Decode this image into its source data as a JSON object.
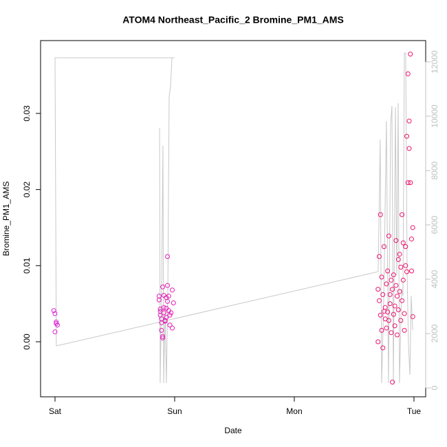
{
  "chart_data": {
    "type": "scatter",
    "title": "ATOM4 Northeast_Pacific_2 Bromine_PM1_AMS",
    "x_label": "Date",
    "y_label": "Bromine_PM1_AMS",
    "xlim": [
      -0.1207,
      3.098
    ],
    "xticks": [
      {
        "value": 0,
        "label": "Sat"
      },
      {
        "value": 1,
        "label": "Sun"
      },
      {
        "value": 2,
        "label": "Mon"
      },
      {
        "value": 3,
        "label": "Tue"
      }
    ],
    "ylim": [
      -0.00723,
      0.03957
    ],
    "yticks": [
      {
        "value": 0,
        "label": "0.00"
      },
      0.01,
      0.02,
      0.03
    ],
    "y2lim": [
      -329,
      12785
    ],
    "y2ticks": [
      0,
      2000,
      4000,
      6000,
      8000,
      10000,
      12000
    ],
    "y2_color": "#c0c0c0",
    "series": [
      {
        "type": "scatter",
        "color_gradient": [
          "#dd22dd",
          "#ee1166"
        ],
        "x": [
          -0.01,
          0.0,
          0.01,
          0.01,
          0.02,
          0.0,
          0.87,
          0.87,
          0.88,
          0.88,
          0.88,
          0.89,
          0.89,
          0.89,
          0.9,
          0.9,
          0.9,
          0.91,
          0.91,
          0.91,
          0.92,
          0.92,
          0.93,
          0.93,
          0.93,
          0.94,
          0.94,
          0.94,
          0.95,
          0.95,
          0.96,
          0.96,
          0.97,
          0.98,
          0.98,
          0.99,
          2.7,
          2.7,
          2.71,
          2.71,
          2.72,
          2.72,
          2.73,
          2.73,
          2.74,
          2.74,
          2.75,
          2.75,
          2.76,
          2.76,
          2.77,
          2.77,
          2.78,
          2.78,
          2.79,
          2.79,
          2.8,
          2.8,
          2.81,
          2.81,
          2.82,
          2.82,
          2.83,
          2.83,
          2.84,
          2.84,
          2.85,
          2.85,
          2.86,
          2.86,
          2.87,
          2.87,
          2.88,
          2.88,
          2.89,
          2.89,
          2.9,
          2.9,
          2.91,
          2.91,
          2.92,
          2.92,
          2.93,
          2.93,
          2.94,
          2.94,
          2.95,
          2.95,
          2.96,
          2.96,
          2.97,
          2.97,
          2.98,
          2.98,
          2.99,
          2.99
        ],
        "values": [
          0.0041,
          0.0037,
          0.0026,
          0.0024,
          0.0022,
          0.0013,
          0.0055,
          0.006,
          0.0043,
          0.004,
          0.0035,
          0.003,
          0.0025,
          0.0015,
          0.0007,
          0.0005,
          0.0072,
          0.0061,
          0.0045,
          0.0038,
          0.0027,
          0.0028,
          0.0032,
          0.0044,
          0.0058,
          0.0053,
          0.0112,
          0.0074,
          0.006,
          0.0041,
          0.0022,
          0.0035,
          0.0038,
          0.0018,
          0.0068,
          0.0051,
          0.0069,
          0.0,
          0.0112,
          0.0054,
          0.0035,
          0.0167,
          0.0085,
          0.0015,
          -0.0008,
          0.0062,
          0.0125,
          0.004,
          0.0045,
          0.003,
          0.0076,
          0.0018,
          0.0093,
          0.0039,
          0.0028,
          0.0139,
          0.0062,
          0.005,
          0.0012,
          0.0081,
          -0.0053,
          0.0069,
          0.0036,
          0.0088,
          0.0047,
          0.0021,
          0.0074,
          0.0133,
          0.006,
          0.0009,
          0.0108,
          0.0042,
          0.0115,
          0.0066,
          0.0028,
          0.0098,
          0.0167,
          0.0054,
          0.0081,
          0.013,
          0.0037,
          0.0015,
          0.0125,
          0.01,
          0.0092,
          0.027,
          0.0209,
          0.0352,
          0.029,
          0.0254,
          0.0209,
          0.0378,
          0.0135,
          0.0093,
          0.0033,
          0.015
        ]
      },
      {
        "type": "line",
        "axis": "y2",
        "color": "#c8c8c8",
        "x": [
          0.874,
          0.879,
          0.891,
          0.902,
          0.908,
          0.92,
          0.931,
          0.943,
          0.954,
          0.966,
          0.977,
          1.0,
          0.0,
          0.011,
          2.701,
          2.718,
          2.73,
          2.747,
          2.77,
          2.787,
          2.805,
          2.816,
          2.828,
          2.845,
          2.856,
          2.868,
          2.879,
          2.897,
          2.908,
          2.92,
          2.931,
          2.943,
          2.954,
          2.966,
          2.977,
          2.989
        ],
        "values": [
          9570,
          177,
          3646,
          8911,
          177,
          2886,
          177,
          3646,
          10734,
          11114,
          12152,
          12152,
          12152,
          1544,
          4278,
          9139,
          177,
          3139,
          9823,
          177,
          9721,
          10380,
          177,
          10329,
          4152,
          10481,
          177,
          3646,
          3392,
          12329,
          12329,
          4152,
          1620,
          481,
          3392,
          2127
        ]
      }
    ]
  }
}
